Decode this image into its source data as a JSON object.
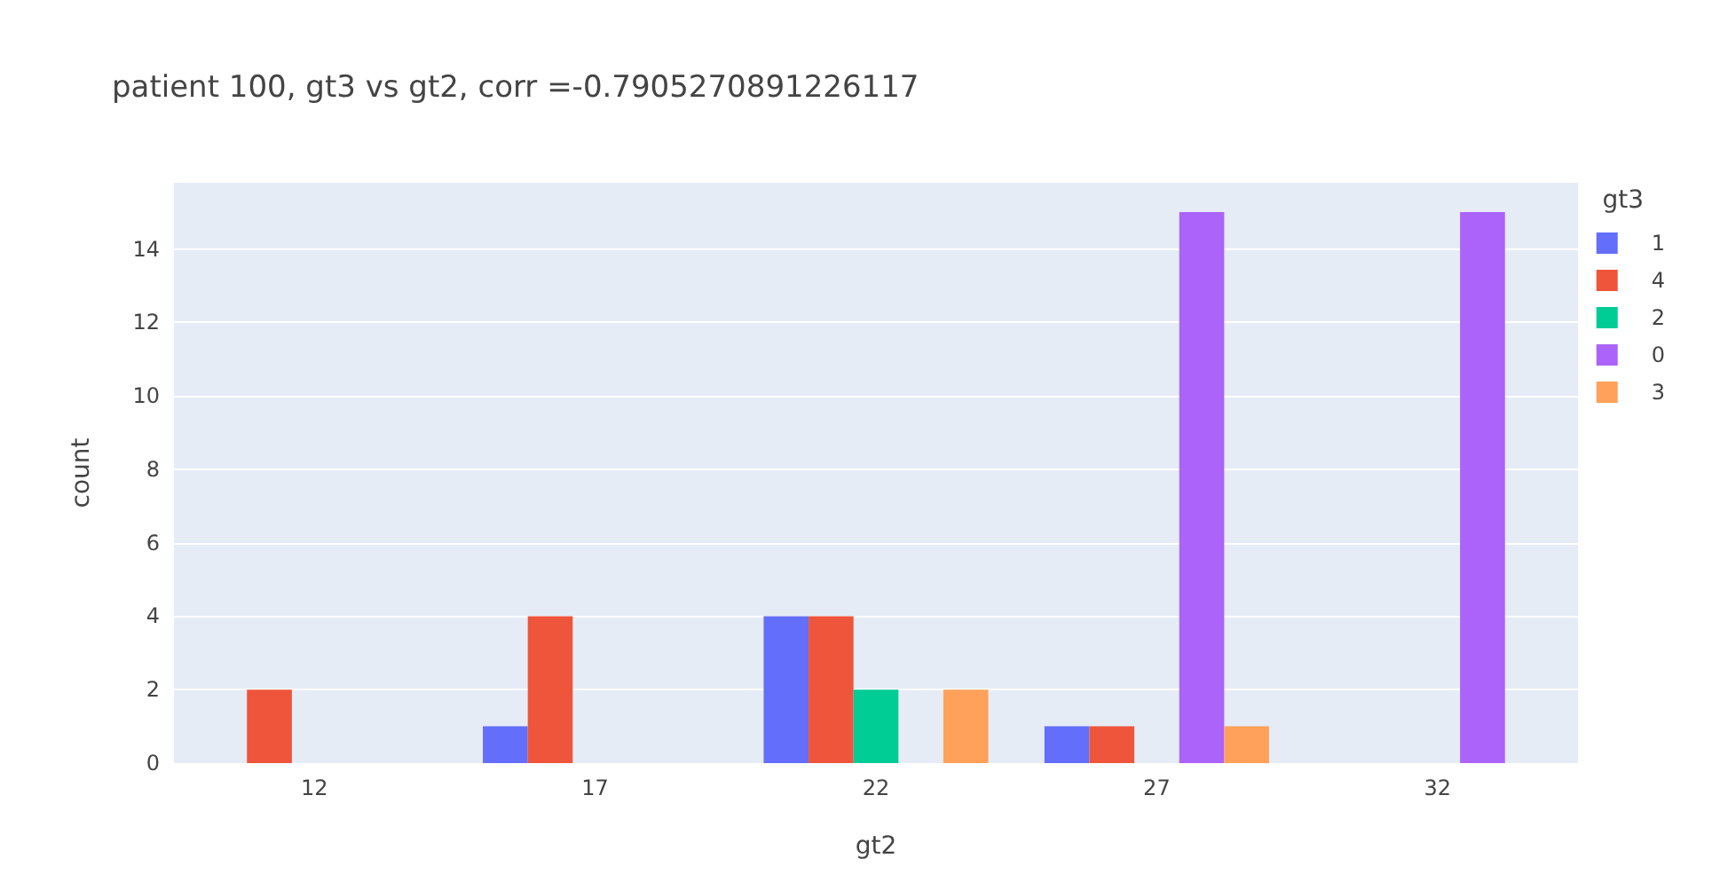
{
  "chart_data": {
    "type": "bar",
    "title": "patient 100, gt3 vs gt2, corr =-0.7905270891226117",
    "xlabel": "gt2",
    "ylabel": "count",
    "legend_title": "gt3",
    "categories": [
      "12",
      "17",
      "22",
      "27",
      "32"
    ],
    "series": [
      {
        "name": "1",
        "color": "#636efa",
        "values": [
          null,
          1,
          4,
          1,
          null
        ]
      },
      {
        "name": "4",
        "color": "#ef553b",
        "values": [
          2,
          4,
          4,
          1,
          null
        ]
      },
      {
        "name": "2",
        "color": "#00cc96",
        "values": [
          null,
          null,
          2,
          null,
          null
        ]
      },
      {
        "name": "0",
        "color": "#ab63fa",
        "values": [
          null,
          null,
          null,
          15,
          15
        ]
      },
      {
        "name": "3",
        "color": "#ffa15a",
        "values": [
          null,
          null,
          2,
          1,
          null
        ]
      }
    ],
    "ylim": [
      0,
      15.8
    ],
    "yticks": [
      0,
      2,
      4,
      6,
      8,
      10,
      12,
      14
    ],
    "grid": "y",
    "legend": "top right"
  }
}
